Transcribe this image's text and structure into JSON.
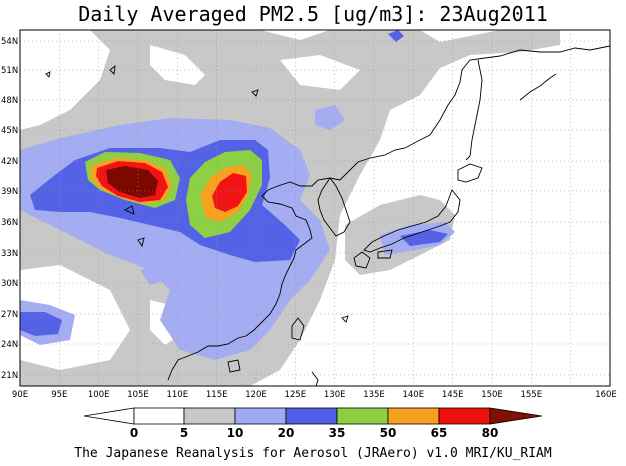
{
  "title": "Daily Averaged PM2.5 [ug/m3]: 23Aug2011",
  "footer": "The Japanese Reanalysis for Aerosol (JRAero) v1.0 MRI/KU_RIAM",
  "map": {
    "lon_ticks": [
      "90E",
      "95E",
      "100E",
      "105E",
      "110E",
      "115E",
      "120E",
      "125E",
      "130E",
      "135E",
      "140E",
      "145E",
      "150E",
      "155E",
      "160E"
    ],
    "lat_ticks": [
      "54N",
      "51N",
      "48N",
      "45N",
      "42N",
      "39N",
      "36N",
      "33N",
      "30N",
      "27N",
      "24N",
      "21N"
    ]
  },
  "colorbar": {
    "levels": [
      "0",
      "5",
      "10",
      "20",
      "35",
      "50",
      "65",
      "80"
    ],
    "colors": [
      "#ffffff",
      "#c8c8c8",
      "#a0a8f0",
      "#5060e8",
      "#8cd040",
      "#f8a020",
      "#f01010",
      "#801000"
    ]
  },
  "palette": {
    "c5": "#c8c8c8",
    "c10": "#a4acf2",
    "c20": "#5462e6",
    "c35": "#8ed044",
    "c50": "#f8a020",
    "c65": "#f01414",
    "c80": "#7c0800"
  }
}
